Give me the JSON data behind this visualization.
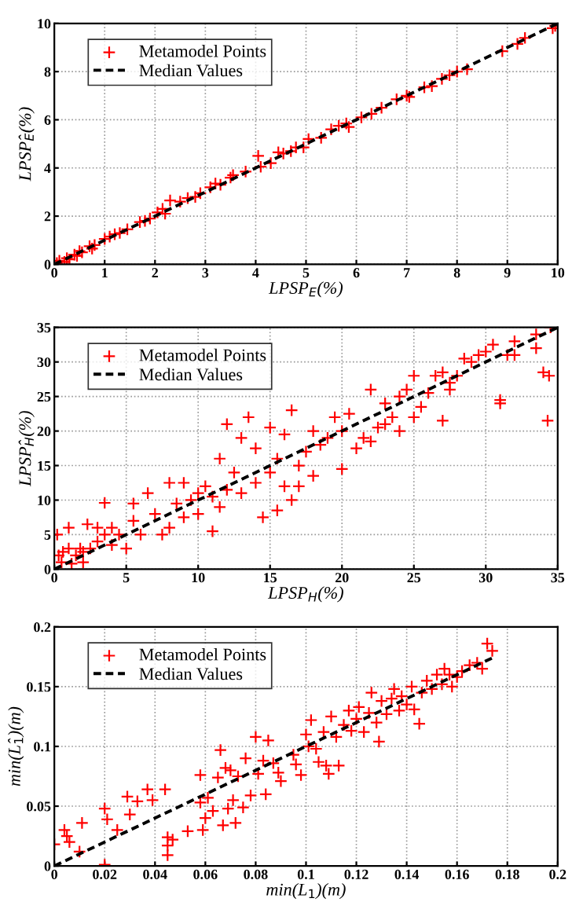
{
  "chart_data": [
    {
      "type": "scatter",
      "xlabel": "LPSP$_{E}$(%)",
      "ylabel": "LPSP̂$_{E}$(%)",
      "xlim": [
        0,
        10
      ],
      "ylim": [
        0,
        10
      ],
      "xticks": [
        0,
        1,
        2,
        3,
        4,
        5,
        6,
        7,
        8,
        9,
        10
      ],
      "yticks": [
        0,
        2,
        4,
        6,
        8,
        10
      ],
      "grid": true,
      "legend": "top left",
      "series": [
        {
          "name": "Metamodel Points",
          "color": "#ff0000",
          "marker": "cross",
          "x": [
            0.05,
            0.1,
            0.2,
            0.25,
            0.3,
            0.4,
            0.45,
            0.5,
            0.55,
            0.7,
            0.75,
            0.8,
            1.0,
            1.1,
            1.2,
            1.3,
            1.45,
            1.7,
            1.8,
            1.9,
            2.05,
            2.15,
            2.2,
            2.3,
            2.5,
            2.65,
            2.8,
            2.9,
            3.1,
            3.2,
            3.3,
            3.5,
            3.55,
            3.8,
            4.05,
            4.1,
            4.3,
            4.45,
            4.55,
            4.7,
            4.8,
            4.95,
            5.05,
            5.3,
            5.5,
            5.65,
            5.8,
            5.85,
            6.1,
            6.3,
            6.5,
            6.8,
            7.0,
            7.05,
            7.35,
            7.5,
            7.7,
            7.85,
            8.0,
            8.2,
            8.9,
            9.2,
            9.35,
            9.9,
            9.95
          ],
          "values": [
            0.05,
            0.15,
            0.1,
            0.25,
            0.2,
            0.4,
            0.35,
            0.55,
            0.5,
            0.75,
            0.65,
            0.8,
            1.05,
            1.15,
            1.25,
            1.3,
            1.45,
            1.75,
            1.8,
            1.9,
            2.15,
            2.3,
            2.1,
            2.65,
            2.6,
            2.75,
            2.8,
            2.95,
            3.2,
            3.35,
            3.3,
            3.6,
            3.7,
            3.85,
            4.5,
            4.05,
            4.2,
            4.65,
            4.6,
            4.7,
            4.85,
            4.85,
            5.2,
            5.25,
            5.6,
            5.75,
            5.85,
            5.7,
            6.1,
            6.25,
            6.5,
            6.85,
            7.0,
            6.95,
            7.35,
            7.4,
            7.7,
            7.85,
            8.0,
            8.1,
            8.85,
            9.15,
            9.4,
            9.8,
            9.9
          ]
        },
        {
          "name": "Median Values",
          "type": "line",
          "color": "#000000",
          "line_style": "dashed",
          "x": [
            0,
            10
          ],
          "values": [
            0,
            10
          ]
        }
      ]
    },
    {
      "type": "scatter",
      "xlabel": "LPSP$_{H}$(%)",
      "ylabel": "LPSP̂$_{H}$(%)",
      "xlim": [
        0,
        35
      ],
      "ylim": [
        0,
        35
      ],
      "xticks": [
        0,
        5,
        10,
        15,
        20,
        25,
        30,
        35
      ],
      "yticks": [
        0,
        5,
        10,
        15,
        20,
        25,
        30,
        35
      ],
      "grid": true,
      "legend": "top left",
      "series": [
        {
          "name": "Metamodel Points",
          "color": "#ff0000",
          "marker": "cross",
          "x": [
            0.2,
            0.3,
            0.5,
            0.6,
            1,
            1,
            1.2,
            1.5,
            1.8,
            2,
            2,
            2.3,
            2.5,
            3,
            3,
            3.5,
            3.5,
            4,
            4,
            4.5,
            5,
            5.5,
            5.5,
            6,
            6.5,
            7,
            7.5,
            8,
            8,
            8.5,
            9,
            9,
            9.5,
            10,
            10,
            10.5,
            11,
            11,
            11.5,
            11.5,
            12,
            12,
            12.5,
            13,
            13,
            13.5,
            14,
            14,
            14.5,
            15,
            15,
            15.5,
            15.5,
            16,
            16,
            16.5,
            16.5,
            17,
            17,
            17.5,
            18,
            18,
            18.5,
            19,
            19.5,
            20,
            20,
            20.5,
            21,
            21.5,
            22,
            22,
            22.5,
            23,
            23,
            23.5,
            24,
            24,
            24.5,
            25,
            25,
            25.5,
            26,
            26.5,
            27,
            27,
            27.5,
            27.5,
            28,
            28.5,
            29,
            29.5,
            30,
            30.5,
            31,
            31,
            31.5,
            32,
            32,
            33.5,
            34,
            34.3,
            34.4,
            34.5,
            33.5
          ],
          "values": [
            5,
            2,
            1,
            2.5,
            3,
            6,
            0.8,
            2,
            3,
            1,
            2.5,
            6.5,
            3,
            4,
            6,
            9.6,
            5,
            3.5,
            6,
            5,
            3,
            9.5,
            7,
            5,
            11,
            8,
            5,
            12.5,
            6,
            9.5,
            12.5,
            7.5,
            10,
            11,
            8,
            12,
            5.5,
            10.5,
            16,
            9,
            11.5,
            21,
            14,
            11,
            19,
            22,
            17.5,
            12.5,
            7.5,
            20.5,
            14,
            8.5,
            16,
            19.5,
            12,
            23,
            10,
            12,
            15,
            17,
            20,
            13.5,
            18,
            19,
            22,
            14.5,
            20,
            22.5,
            17.5,
            19,
            26,
            18.5,
            20.5,
            21,
            24,
            22,
            25,
            20,
            26,
            28,
            22,
            23.5,
            25.5,
            28,
            28.5,
            21.5,
            27,
            26,
            28,
            30.5,
            30,
            31,
            31.5,
            32.5,
            24.5,
            24,
            31,
            33,
            31,
            32,
            28.5,
            21.5,
            28,
            35,
            34
          ]
        },
        {
          "name": "Median Values",
          "type": "line",
          "color": "#000000",
          "line_style": "dashed",
          "x": [
            0,
            35
          ],
          "values": [
            0,
            35
          ]
        }
      ]
    },
    {
      "type": "scatter",
      "xlabel": "min(L$_{1}$)(m)",
      "ylabel": "min(L̂$_{1}$)(m)",
      "xlim": [
        0,
        0.2
      ],
      "ylim": [
        0,
        0.2
      ],
      "xticks": [
        0,
        0.02,
        0.04,
        0.06,
        0.08,
        0.1,
        0.12,
        0.14,
        0.16,
        0.18,
        0.2
      ],
      "yticks": [
        0,
        0.05,
        0.1,
        0.15,
        0.2
      ],
      "grid": true,
      "legend": "top left",
      "series": [
        {
          "name": "Metamodel Points",
          "color": "#ff0000",
          "marker": "cross",
          "x": [
            0,
            0.004,
            0.005,
            0.006,
            0.01,
            0.011,
            0.02,
            0.02,
            0.021,
            0.025,
            0.029,
            0.03,
            0.033,
            0.037,
            0.039,
            0.044,
            0.045,
            0.045,
            0.045,
            0.047,
            0.053,
            0.058,
            0.058,
            0.059,
            0.06,
            0.061,
            0.063,
            0.065,
            0.066,
            0.067,
            0.068,
            0.069,
            0.07,
            0.071,
            0.072,
            0.073,
            0.075,
            0.076,
            0.078,
            0.08,
            0.081,
            0.083,
            0.084,
            0.085,
            0.087,
            0.089,
            0.09,
            0.095,
            0.096,
            0.098,
            0.1,
            0.101,
            0.102,
            0.104,
            0.105,
            0.107,
            0.108,
            0.109,
            0.11,
            0.112,
            0.113,
            0.115,
            0.117,
            0.118,
            0.12,
            0.121,
            0.123,
            0.125,
            0.126,
            0.128,
            0.129,
            0.13,
            0.132,
            0.134,
            0.135,
            0.137,
            0.138,
            0.14,
            0.142,
            0.143,
            0.145,
            0.146,
            0.148,
            0.15,
            0.152,
            0.154,
            0.155,
            0.157,
            0.158,
            0.16,
            0.162,
            0.165,
            0.168,
            0.17,
            0.172,
            0.174
          ],
          "values": [
            0.018,
            0.03,
            0.025,
            0.02,
            0.012,
            0.036,
            0.001,
            0.048,
            0.039,
            0.03,
            0.058,
            0.043,
            0.054,
            0.064,
            0.055,
            0.064,
            0.024,
            0.009,
            0.017,
            0.022,
            0.029,
            0.076,
            0.053,
            0.03,
            0.04,
            0.057,
            0.046,
            0.074,
            0.097,
            0.034,
            0.082,
            0.048,
            0.08,
            0.055,
            0.036,
            0.075,
            0.049,
            0.09,
            0.059,
            0.108,
            0.077,
            0.088,
            0.06,
            0.105,
            0.086,
            0.078,
            0.071,
            0.093,
            0.085,
            0.076,
            0.11,
            0.1,
            0.122,
            0.098,
            0.087,
            0.112,
            0.084,
            0.077,
            0.125,
            0.108,
            0.084,
            0.118,
            0.13,
            0.113,
            0.123,
            0.133,
            0.112,
            0.128,
            0.145,
            0.12,
            0.104,
            0.138,
            0.127,
            0.14,
            0.148,
            0.13,
            0.142,
            0.135,
            0.15,
            0.131,
            0.119,
            0.145,
            0.155,
            0.148,
            0.16,
            0.152,
            0.165,
            0.16,
            0.15,
            0.158,
            0.163,
            0.168,
            0.17,
            0.165,
            0.186,
            0.18
          ]
        },
        {
          "name": "Median Values",
          "type": "line",
          "color": "#000000",
          "line_style": "dashed",
          "x": [
            0,
            0.175
          ],
          "values": [
            0,
            0.175
          ]
        }
      ]
    }
  ]
}
